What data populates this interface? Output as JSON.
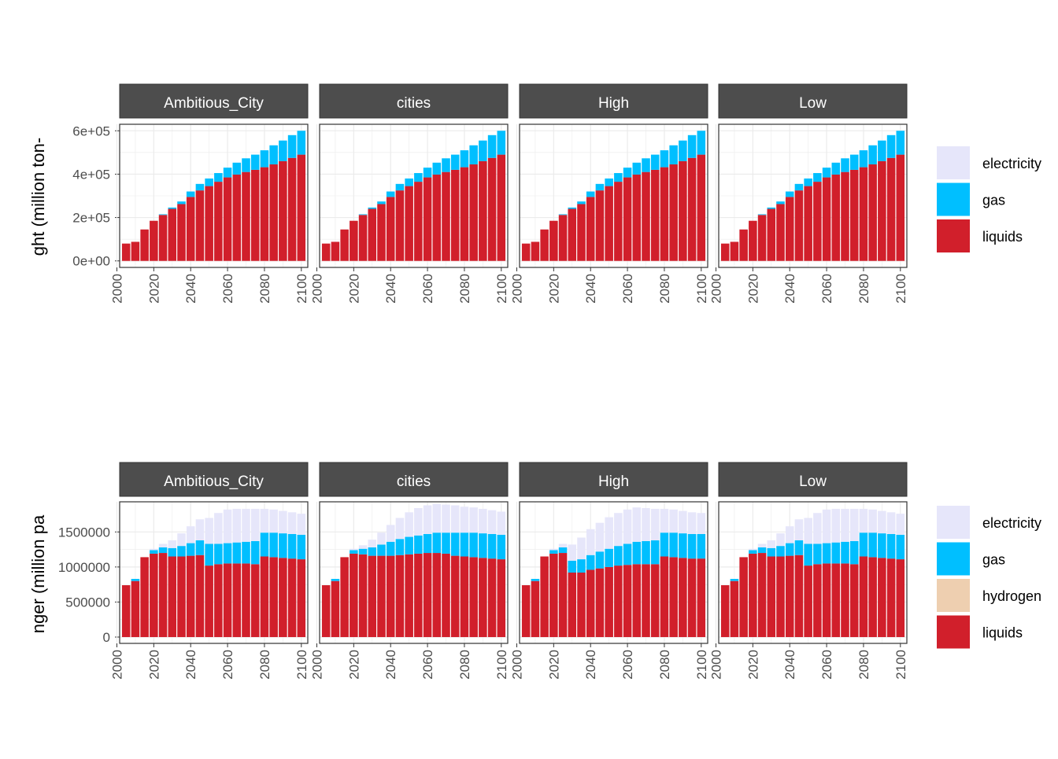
{
  "colors": {
    "electricity": "#e6e6fa",
    "gas": "#00bfff",
    "hydrogen": "#eecfb0",
    "liquids": "#d11f2b",
    "strip": "#4d4d4d",
    "grid": "#ebebeb",
    "axis_text": "#4d4d4d"
  },
  "chart_data": [
    {
      "type": "bar",
      "stacked": true,
      "ylabel": "ght (million ton-",
      "panels": [
        "Ambitious_City",
        "cities",
        "High",
        "Low"
      ],
      "x": [
        2005,
        2010,
        2015,
        2020,
        2025,
        2030,
        2035,
        2040,
        2045,
        2050,
        2055,
        2060,
        2065,
        2070,
        2075,
        2080,
        2085,
        2090,
        2095,
        2100
      ],
      "xticks": [
        2000,
        2020,
        2040,
        2060,
        2080,
        2100
      ],
      "xticklabels": [
        "2000",
        "2020",
        "2040",
        "2060",
        "2080",
        "2100"
      ],
      "xlim": [
        2001.5,
        2103.5
      ],
      "ylim": [
        -30000,
        630000
      ],
      "yticks": [
        0,
        200000,
        400000,
        600000
      ],
      "yticklabels": [
        "0e+00",
        "2e+05",
        "4e+05",
        "6e+05"
      ],
      "legend": {
        "position": "right",
        "entries": [
          "electricity",
          "gas",
          "liquids"
        ]
      },
      "series": [
        {
          "name": "liquids",
          "values": [
            80000,
            88000,
            145000,
            185000,
            212000,
            240000,
            262000,
            295000,
            325000,
            345000,
            365000,
            385000,
            398000,
            410000,
            420000,
            432000,
            445000,
            460000,
            475000,
            490000
          ]
        },
        {
          "name": "gas",
          "values": [
            0,
            0,
            0,
            0,
            3000,
            6000,
            12000,
            25000,
            30000,
            35000,
            40000,
            45000,
            55000,
            63000,
            70000,
            78000,
            88000,
            95000,
            105000,
            110000
          ]
        },
        {
          "name": "electricity",
          "values": [
            0,
            0,
            0,
            0,
            0,
            0,
            0,
            0,
            0,
            0,
            0,
            0,
            0,
            0,
            0,
            0,
            0,
            0,
            0,
            0
          ]
        }
      ],
      "panel_series": null
    },
    {
      "type": "bar",
      "stacked": true,
      "ylabel": "nger (million pa",
      "panels": [
        "Ambitious_City",
        "cities",
        "High",
        "Low"
      ],
      "x": [
        2005,
        2010,
        2015,
        2020,
        2025,
        2030,
        2035,
        2040,
        2045,
        2050,
        2055,
        2060,
        2065,
        2070,
        2075,
        2080,
        2085,
        2090,
        2095,
        2100
      ],
      "xticks": [
        2000,
        2020,
        2040,
        2060,
        2080,
        2100
      ],
      "xticklabels": [
        "2000",
        "2020",
        "2040",
        "2060",
        "2080",
        "2100"
      ],
      "xlim": [
        2001.5,
        2103.5
      ],
      "ylim": [
        -90000,
        1930000
      ],
      "yticks": [
        0,
        500000,
        1000000,
        1500000
      ],
      "yticklabels": [
        "0",
        "500000",
        "1000000",
        "1500000"
      ],
      "legend": {
        "position": "right",
        "entries": [
          "electricity",
          "gas",
          "hydrogen",
          "liquids"
        ]
      },
      "panel_series": [
        [
          {
            "name": "liquids",
            "values": [
              740000,
              800000,
              1140000,
              1190000,
              1200000,
              1150000,
              1150000,
              1160000,
              1170000,
              1020000,
              1040000,
              1050000,
              1050000,
              1050000,
              1040000,
              1150000,
              1140000,
              1130000,
              1120000,
              1110000
            ]
          },
          {
            "name": "gas",
            "values": [
              0,
              30000,
              0,
              50000,
              80000,
              120000,
              150000,
              180000,
              210000,
              310000,
              290000,
              290000,
              300000,
              310000,
              330000,
              340000,
              350000,
              350000,
              350000,
              350000
            ]
          },
          {
            "name": "hydrogen",
            "values": [
              0,
              0,
              0,
              0,
              0,
              0,
              0,
              0,
              0,
              0,
              0,
              0,
              0,
              0,
              0,
              0,
              0,
              0,
              0,
              0
            ]
          },
          {
            "name": "electricity",
            "values": [
              0,
              0,
              0,
              20000,
              50000,
              110000,
              180000,
              240000,
              300000,
              370000,
              440000,
              480000,
              480000,
              470000,
              460000,
              340000,
              330000,
              320000,
              310000,
              300000
            ]
          }
        ],
        [
          {
            "name": "liquids",
            "values": [
              740000,
              800000,
              1140000,
              1190000,
              1180000,
              1160000,
              1160000,
              1160000,
              1170000,
              1180000,
              1190000,
              1200000,
              1200000,
              1190000,
              1160000,
              1150000,
              1140000,
              1130000,
              1120000,
              1110000
            ]
          },
          {
            "name": "gas",
            "values": [
              0,
              30000,
              0,
              50000,
              80000,
              120000,
              160000,
              200000,
              230000,
              250000,
              260000,
              270000,
              290000,
              300000,
              330000,
              340000,
              350000,
              350000,
              350000,
              350000
            ]
          },
          {
            "name": "hydrogen",
            "values": [
              0,
              0,
              0,
              0,
              0,
              0,
              0,
              0,
              0,
              0,
              0,
              0,
              0,
              0,
              0,
              0,
              0,
              0,
              0,
              0
            ]
          },
          {
            "name": "electricity",
            "values": [
              0,
              0,
              0,
              20000,
              50000,
              110000,
              170000,
              240000,
              300000,
              350000,
              390000,
              410000,
              410000,
              400000,
              390000,
              370000,
              360000,
              350000,
              340000,
              330000
            ]
          }
        ],
        [
          {
            "name": "liquids",
            "values": [
              740000,
              800000,
              1150000,
              1190000,
              1200000,
              920000,
              920000,
              960000,
              980000,
              1000000,
              1020000,
              1030000,
              1040000,
              1040000,
              1040000,
              1150000,
              1140000,
              1130000,
              1120000,
              1120000
            ]
          },
          {
            "name": "gas",
            "values": [
              0,
              30000,
              0,
              50000,
              80000,
              170000,
              190000,
              210000,
              240000,
              260000,
              280000,
              300000,
              320000,
              330000,
              340000,
              340000,
              350000,
              350000,
              350000,
              350000
            ]
          },
          {
            "name": "hydrogen",
            "values": [
              0,
              0,
              0,
              0,
              0,
              0,
              0,
              0,
              0,
              0,
              0,
              0,
              0,
              0,
              0,
              0,
              0,
              0,
              0,
              0
            ]
          },
          {
            "name": "electricity",
            "values": [
              0,
              0,
              0,
              20000,
              50000,
              230000,
              310000,
              370000,
              410000,
              450000,
              470000,
              490000,
              490000,
              470000,
              450000,
              340000,
              330000,
              320000,
              310000,
              300000
            ]
          }
        ],
        [
          {
            "name": "liquids",
            "values": [
              740000,
              800000,
              1140000,
              1190000,
              1200000,
              1150000,
              1150000,
              1160000,
              1170000,
              1020000,
              1040000,
              1050000,
              1050000,
              1050000,
              1040000,
              1150000,
              1140000,
              1130000,
              1120000,
              1110000
            ]
          },
          {
            "name": "gas",
            "values": [
              0,
              30000,
              0,
              50000,
              80000,
              120000,
              150000,
              180000,
              210000,
              310000,
              290000,
              290000,
              300000,
              310000,
              330000,
              340000,
              350000,
              350000,
              350000,
              350000
            ]
          },
          {
            "name": "hydrogen",
            "values": [
              0,
              0,
              0,
              0,
              0,
              0,
              0,
              0,
              0,
              0,
              0,
              0,
              0,
              0,
              0,
              0,
              0,
              0,
              0,
              0
            ]
          },
          {
            "name": "electricity",
            "values": [
              0,
              0,
              0,
              20000,
              50000,
              110000,
              180000,
              240000,
              300000,
              370000,
              440000,
              480000,
              480000,
              470000,
              460000,
              340000,
              330000,
              320000,
              310000,
              300000
            ]
          }
        ]
      ],
      "series": null
    }
  ]
}
